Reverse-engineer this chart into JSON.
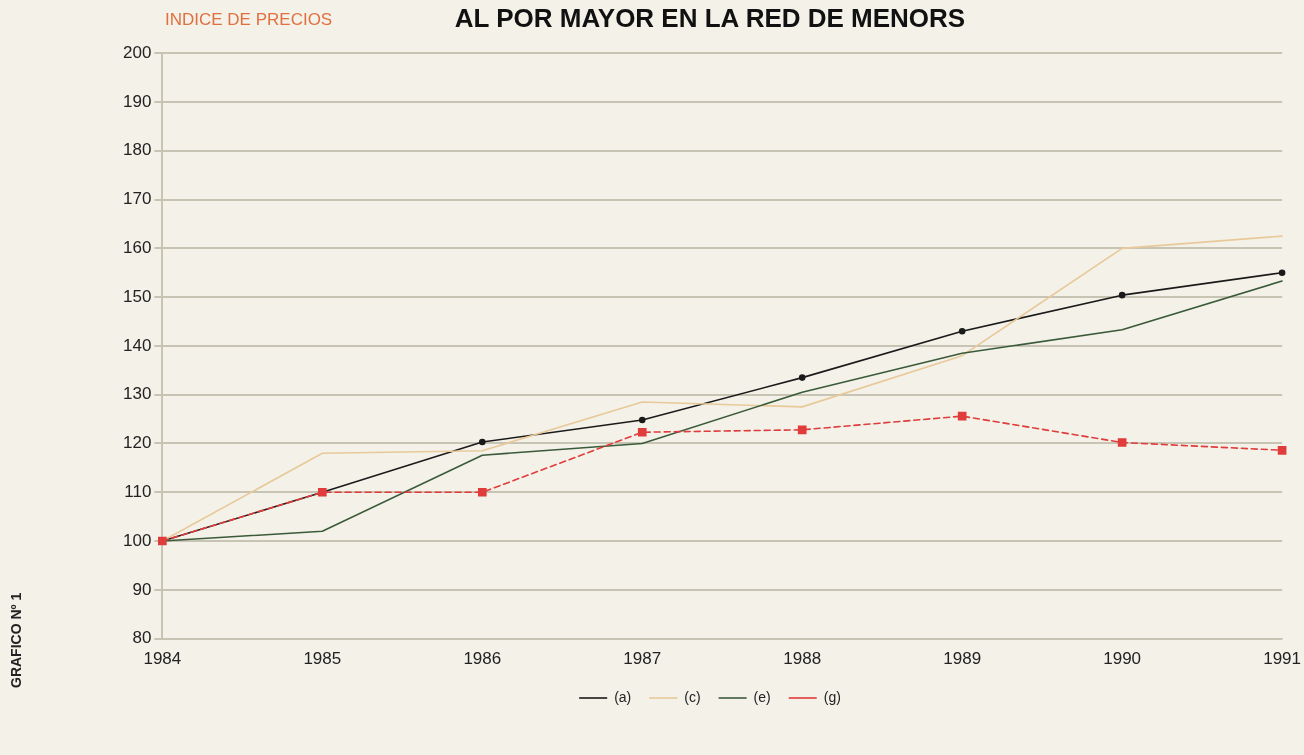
{
  "chart_data": {
    "type": "line",
    "title": "AL POR MAYOR EN LA RED DE MENORS",
    "ylabel": "INDICE DE PRECIOS",
    "categories": [
      "1984",
      "1985",
      "1986",
      "1987",
      "1988",
      "1989",
      "1990",
      "1991"
    ],
    "series": [
      {
        "name": "(a)",
        "color": "#1a1a1a",
        "marker": "circle",
        "line_style": "solid",
        "values": [
          100,
          110,
          120.3,
          124.8,
          133.5,
          143,
          150.4,
          155
        ]
      },
      {
        "name": "(c)",
        "color": "#e8c99a",
        "marker": "none",
        "line_style": "solid",
        "values": [
          100,
          118,
          118.5,
          128.5,
          127.5,
          138,
          160,
          162.5
        ]
      },
      {
        "name": "(e)",
        "color": "#3a5a3a",
        "marker": "none",
        "line_style": "solid",
        "values": [
          100,
          102,
          117.6,
          120,
          130.5,
          138.5,
          143.3,
          153.3
        ]
      },
      {
        "name": "(g)",
        "color": "#e03c3c",
        "marker": "square",
        "line_style": "dashed",
        "values": [
          100,
          110,
          110,
          122.3,
          122.8,
          125.6,
          120.2,
          118.6
        ]
      }
    ],
    "ylim": [
      80,
      200
    ],
    "yticks": [
      80,
      90,
      100,
      110,
      120,
      130,
      140,
      150,
      160,
      170,
      180,
      190,
      200
    ],
    "grid": "y",
    "legend": "bottom",
    "annotations": [
      "GRAFICO Nº 1"
    ]
  }
}
